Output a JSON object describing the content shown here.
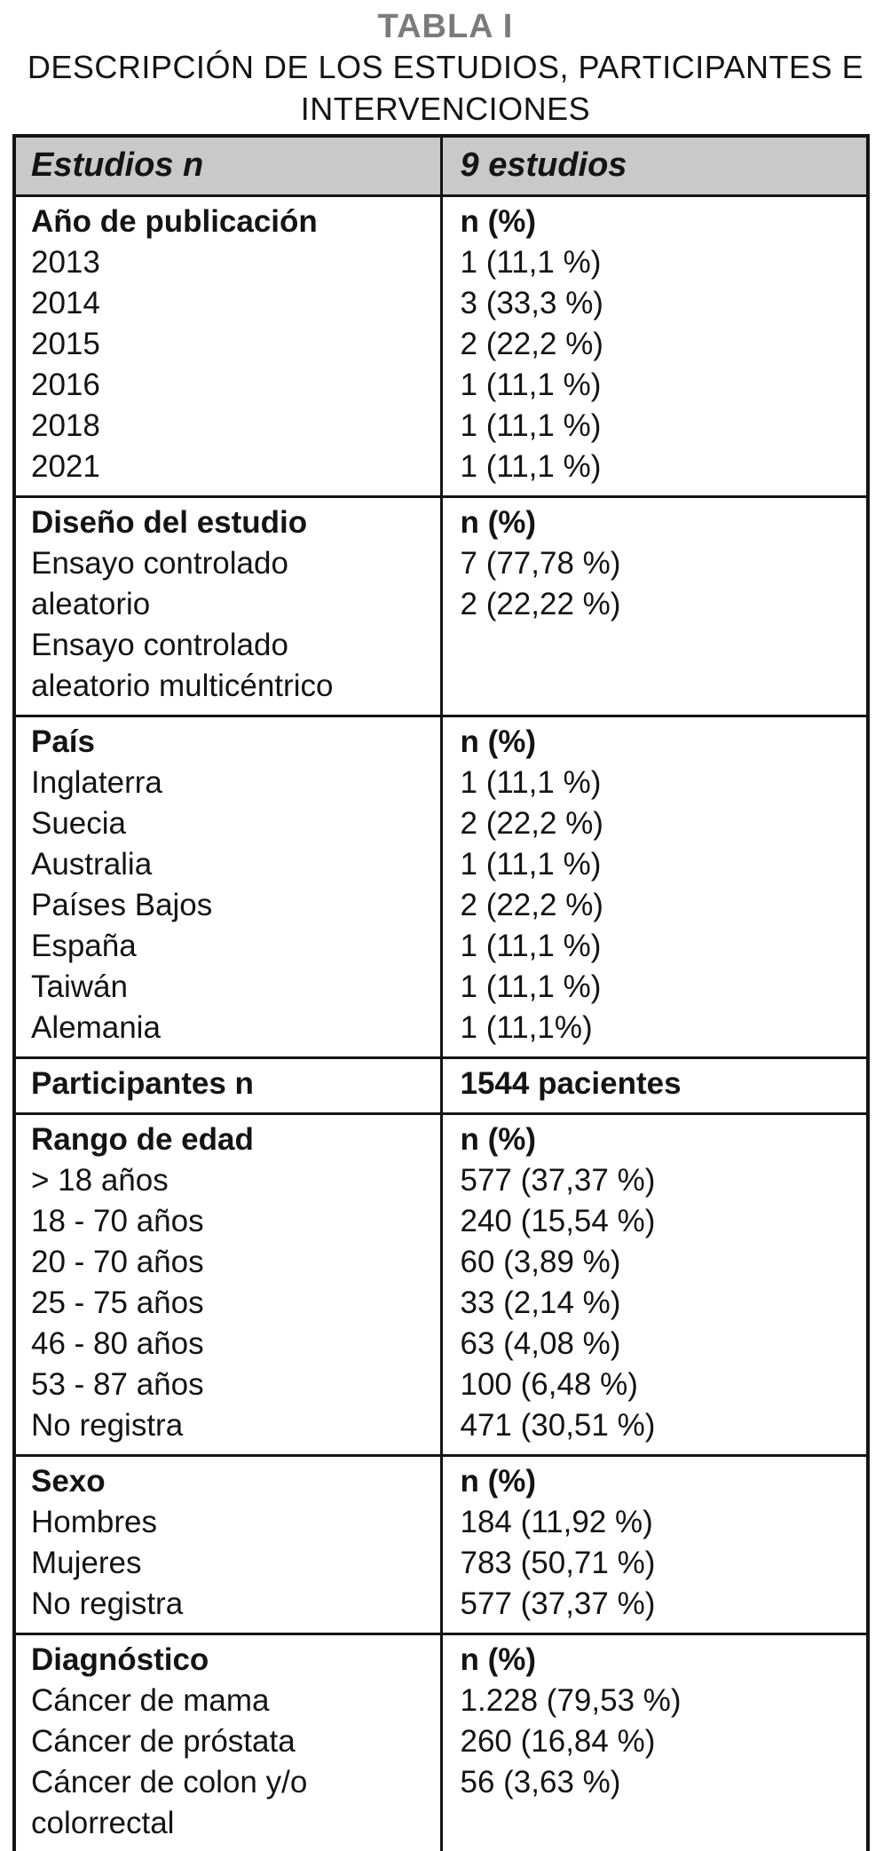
{
  "page": {
    "title": "TABLA I",
    "subtitle_line1": "DESCRIPCIÓN DE LOS ESTUDIOS, PARTICIPANTES E",
    "subtitle_line2": "INTERVENCIONES"
  },
  "colors": {
    "title_gray": "#7b7b7b",
    "header_background": "#c9c9c9",
    "border_black": "#141414"
  },
  "table": {
    "header": {
      "col1": "Estudios n",
      "col2": "9 estudios"
    },
    "sections": [
      {
        "name": "ano-de-publicacion",
        "left": [
          "Año de publicación",
          "2013",
          "2014",
          "2015",
          "2016",
          "2018",
          "2021"
        ],
        "right": [
          "n (%)",
          "1 (11,1 %)",
          "3 (33,3 %)",
          "2 (22,2 %)",
          "1 (11,1 %)",
          "1 (11,1 %)",
          "1 (11,1 %)"
        ]
      },
      {
        "name": "diseno-del-estudio",
        "left": [
          "Diseño del estudio",
          "Ensayo controlado",
          "aleatorio",
          "Ensayo controlado",
          "aleatorio multicéntrico"
        ],
        "right": [
          "n (%)",
          "7 (77,78 %)",
          "2 (22,22 %)"
        ]
      },
      {
        "name": "pais",
        "left": [
          "País",
          "Inglaterra",
          "Suecia",
          "Australia",
          "Países Bajos",
          "España",
          "Taiwán",
          "Alemania"
        ],
        "right": [
          "n (%)",
          "1 (11,1 %)",
          "2 (22,2 %)",
          "1 (11,1 %)",
          "2 (22,2 %)",
          "1 (11,1 %)",
          "1 (11,1 %)",
          "1 (11,1%)"
        ]
      },
      {
        "name": "participantes",
        "left": [
          "Participantes n"
        ],
        "right": [
          "1544 pacientes"
        ]
      },
      {
        "name": "rango-de-edad",
        "left": [
          "Rango de edad",
          "> 18 años",
          "18 - 70 años",
          "20 - 70 años",
          "25 - 75 años",
          "46 - 80 años",
          "53 - 87 años",
          "No registra"
        ],
        "right": [
          "n (%)",
          "577 (37,37 %)",
          "240 (15,54 %)",
          "60 (3,89 %)",
          "33 (2,14 %)",
          "63 (4,08 %)",
          "100 (6,48 %)",
          "471 (30,51 %)"
        ]
      },
      {
        "name": "sexo",
        "left": [
          "Sexo",
          "Hombres",
          "Mujeres",
          "No registra"
        ],
        "right": [
          "n (%)",
          "184 (11,92 %)",
          "783 (50,71 %)",
          "577 (37,37 %)"
        ]
      },
      {
        "name": "diagnostico",
        "left": [
          "Diagnóstico",
          "Cáncer de mama",
          "Cáncer de próstata",
          "Cáncer de colon y/o",
          "colorrectal"
        ],
        "right": [
          "n (%)",
          "1.228 (79,53 %)",
          "260 (16,84 %)",
          "56 (3,63 %)"
        ]
      }
    ]
  }
}
